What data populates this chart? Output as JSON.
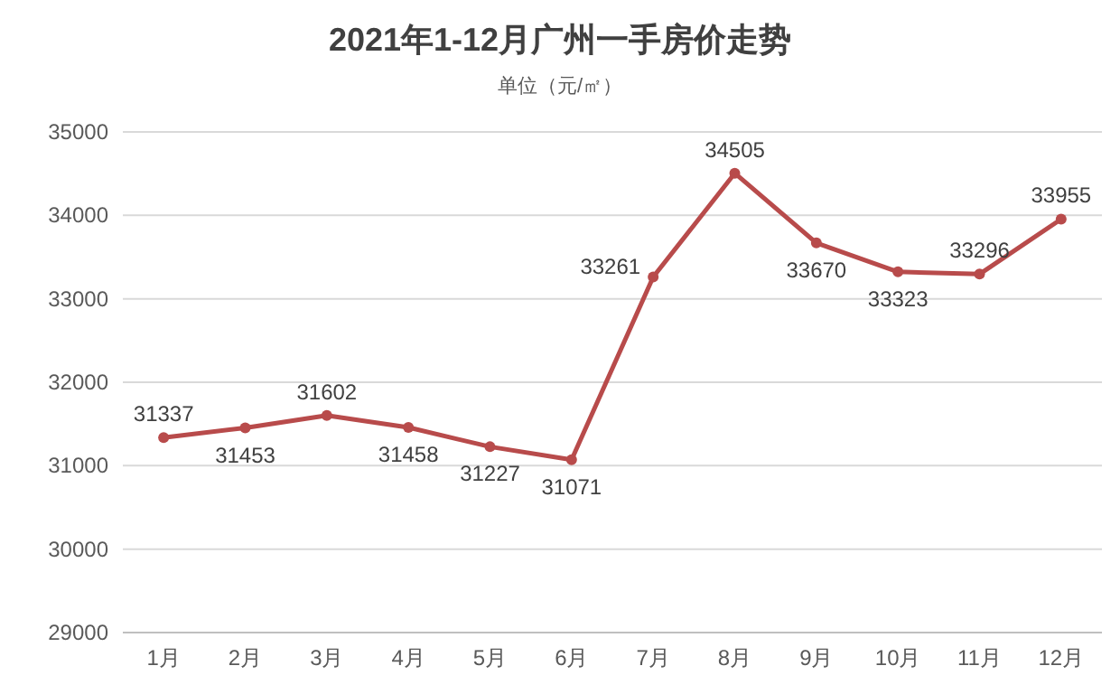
{
  "chart_data": {
    "type": "line",
    "title": "2021年1-12月广州一手房价走势",
    "subtitle": "单位（元/㎡）",
    "categories": [
      "1月",
      "2月",
      "3月",
      "4月",
      "5月",
      "6月",
      "7月",
      "8月",
      "9月",
      "10月",
      "11月",
      "12月"
    ],
    "series": [
      {
        "color": "#b84b4b",
        "values": [
          31337,
          31453,
          31602,
          31458,
          31227,
          31071,
          33261,
          34505,
          33670,
          33323,
          33296,
          33955
        ]
      }
    ],
    "ylim": [
      29000,
      35000
    ],
    "yticks": [
      29000,
      30000,
      31000,
      32000,
      33000,
      34000,
      35000
    ],
    "grid": "y",
    "marker": "circle",
    "line_style": "solid",
    "data_labels": true
  }
}
